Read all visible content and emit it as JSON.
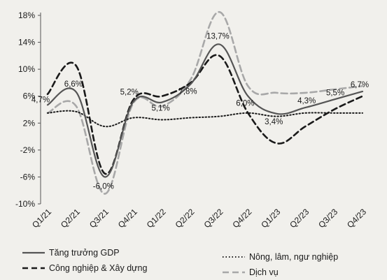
{
  "chart_data": {
    "type": "line",
    "title": "",
    "xlabel": "",
    "ylabel": "",
    "categories": [
      "Q1/21",
      "Q2/21",
      "Q3/21",
      "Q4/21",
      "Q1/22",
      "Q2/22",
      "Q3/22",
      "Q4/22",
      "Q1/23",
      "Q2/23",
      "Q3/23",
      "Q4/23"
    ],
    "y_ticks": [
      "18%",
      "14%",
      "10%",
      "6%",
      "2%",
      "-2%",
      "-6%",
      "-10%"
    ],
    "ylim": [
      -10,
      18
    ],
    "grid": false,
    "legend": "bottom",
    "series": [
      {
        "name": "Tăng trưởng GDP",
        "style": "solid",
        "color": "#555555",
        "values": [
          4.7,
          6.6,
          -6.0,
          5.2,
          5.1,
          7.8,
          13.7,
          6.0,
          3.4,
          4.3,
          5.5,
          6.7
        ]
      },
      {
        "name": "Công nghiệp & Xây dựng",
        "style": "dashed",
        "color": "#1a1a1a",
        "values": [
          6.3,
          10.5,
          -5.5,
          5.5,
          6.0,
          8.0,
          12.0,
          3.5,
          -1.0,
          1.5,
          4.0,
          6.0
        ]
      },
      {
        "name": "Dịch vụ",
        "style": "dashed-light",
        "color": "#a8a8a8",
        "values": [
          3.5,
          4.5,
          -8.5,
          5.0,
          4.5,
          8.5,
          18.5,
          7.5,
          6.5,
          6.5,
          7.0,
          7.5
        ]
      },
      {
        "name": "Nông, lâm, ngư nghiệp",
        "style": "dotted",
        "color": "#1a1a1a",
        "values": [
          3.5,
          3.7,
          1.5,
          2.8,
          2.5,
          2.8,
          3.0,
          3.5,
          3.0,
          3.5,
          3.5,
          3.5
        ]
      }
    ],
    "data_labels": [
      "4,7%",
      "6,6%",
      "-6,0%",
      "5,2%",
      "5,1%",
      "7,8%",
      "13,7%",
      "6,0%",
      "3,4%",
      "4,3%",
      "5,5%",
      "6,7%"
    ]
  }
}
